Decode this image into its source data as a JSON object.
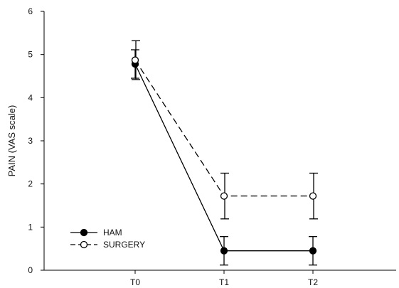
{
  "chart_data": {
    "type": "line",
    "title": "",
    "xlabel": "",
    "ylabel": "PAIN (VAS scale)",
    "categories": [
      "T0",
      "T1",
      "T2"
    ],
    "ylim": [
      0,
      6
    ],
    "yticks": [
      "0",
      "1",
      "2",
      "3",
      "4",
      "5",
      "6"
    ],
    "grid": false,
    "legend_position": "bottom-left",
    "series": [
      {
        "name": "HAM",
        "marker": "filled-circle",
        "line_style": "solid",
        "values": [
          4.78,
          0.45,
          0.45
        ],
        "errors": [
          0.33,
          0.33,
          0.33
        ]
      },
      {
        "name": "SURGERY",
        "marker": "open-circle",
        "line_style": "dashed",
        "values": [
          4.87,
          1.72,
          1.72
        ],
        "errors": [
          0.45,
          0.53,
          0.53
        ]
      }
    ],
    "colors": {
      "line": "#000000",
      "background": "#ffffff"
    }
  }
}
